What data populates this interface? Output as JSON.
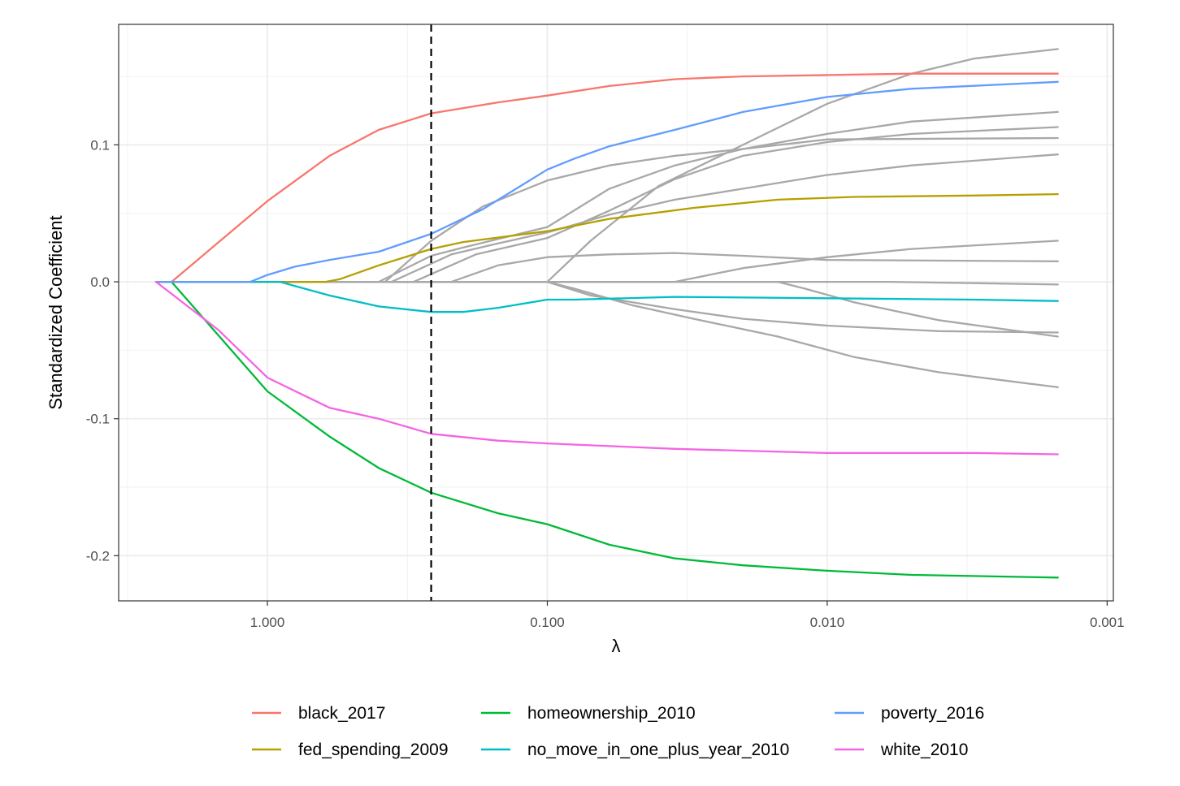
{
  "chart_data": {
    "type": "line",
    "title": "",
    "xlabel": "λ",
    "ylabel": "Standardized Coefficient",
    "x_scale": "log10-reversed",
    "xlim": [
      3.4,
      0.00095
    ],
    "ylim": [
      -0.233,
      0.188
    ],
    "x_ticks": [
      1,
      0.1,
      0.01,
      0.001
    ],
    "x_tick_labels": [
      "1.000",
      "0.100",
      "0.010",
      "0.001"
    ],
    "y_ticks": [
      -0.2,
      -0.1,
      0.0,
      0.1
    ],
    "y_tick_labels": [
      "-0.2",
      "-0.1",
      "0.0",
      "0.1"
    ],
    "grid": true,
    "legend_position": "bottom",
    "vline": {
      "x": 0.26,
      "style": "dashed",
      "color": "#000000"
    },
    "series": [
      {
        "name": "black_2017",
        "color": "#F8766D",
        "points": [
          [
            2.2,
            0
          ],
          [
            1.0,
            0.059
          ],
          [
            0.6,
            0.092
          ],
          [
            0.4,
            0.111
          ],
          [
            0.26,
            0.123
          ],
          [
            0.15,
            0.131
          ],
          [
            0.1,
            0.136
          ],
          [
            0.06,
            0.143
          ],
          [
            0.035,
            0.148
          ],
          [
            0.02,
            0.15
          ],
          [
            0.01,
            0.151
          ],
          [
            0.005,
            0.152
          ],
          [
            0.0015,
            0.152
          ]
        ]
      },
      {
        "name": "fed_spending_2009",
        "color": "#B79F00",
        "points": [
          [
            2.5,
            0
          ],
          [
            0.62,
            0
          ],
          [
            0.55,
            0.002
          ],
          [
            0.4,
            0.012
          ],
          [
            0.26,
            0.024
          ],
          [
            0.2,
            0.029
          ],
          [
            0.1,
            0.037
          ],
          [
            0.06,
            0.046
          ],
          [
            0.03,
            0.054
          ],
          [
            0.015,
            0.06
          ],
          [
            0.008,
            0.062
          ],
          [
            0.003,
            0.063
          ],
          [
            0.0015,
            0.064
          ]
        ]
      },
      {
        "name": "homeownership_2010",
        "color": "#00BA38",
        "points": [
          [
            2.2,
            0
          ],
          [
            1.0,
            -0.08
          ],
          [
            0.6,
            -0.113
          ],
          [
            0.4,
            -0.136
          ],
          [
            0.26,
            -0.154
          ],
          [
            0.15,
            -0.169
          ],
          [
            0.1,
            -0.177
          ],
          [
            0.06,
            -0.192
          ],
          [
            0.035,
            -0.202
          ],
          [
            0.02,
            -0.207
          ],
          [
            0.01,
            -0.211
          ],
          [
            0.005,
            -0.214
          ],
          [
            0.0015,
            -0.216
          ]
        ]
      },
      {
        "name": "no_move_in_one_plus_year_2010",
        "color": "#00BFC4",
        "points": [
          [
            2.5,
            0
          ],
          [
            0.9,
            0
          ],
          [
            0.8,
            -0.003
          ],
          [
            0.6,
            -0.01
          ],
          [
            0.4,
            -0.018
          ],
          [
            0.26,
            -0.022
          ],
          [
            0.2,
            -0.022
          ],
          [
            0.15,
            -0.019
          ],
          [
            0.1,
            -0.013
          ],
          [
            0.08,
            -0.013
          ],
          [
            0.035,
            -0.011
          ],
          [
            0.01,
            -0.012
          ],
          [
            0.003,
            -0.013
          ],
          [
            0.0015,
            -0.014
          ]
        ]
      },
      {
        "name": "poverty_2016",
        "color": "#619CFF",
        "points": [
          [
            2.5,
            0
          ],
          [
            1.15,
            0
          ],
          [
            1.0,
            0.005
          ],
          [
            0.8,
            0.011
          ],
          [
            0.6,
            0.016
          ],
          [
            0.4,
            0.022
          ],
          [
            0.26,
            0.035
          ],
          [
            0.17,
            0.053
          ],
          [
            0.1,
            0.082
          ],
          [
            0.08,
            0.09
          ],
          [
            0.06,
            0.099
          ],
          [
            0.035,
            0.111
          ],
          [
            0.02,
            0.124
          ],
          [
            0.01,
            0.135
          ],
          [
            0.005,
            0.141
          ],
          [
            0.0015,
            0.146
          ]
        ]
      },
      {
        "name": "white_2010",
        "color": "#F564E3",
        "points": [
          [
            2.5,
            0
          ],
          [
            1.5,
            -0.035
          ],
          [
            1.0,
            -0.07
          ],
          [
            0.6,
            -0.092
          ],
          [
            0.4,
            -0.1
          ],
          [
            0.26,
            -0.111
          ],
          [
            0.15,
            -0.116
          ],
          [
            0.1,
            -0.118
          ],
          [
            0.06,
            -0.12
          ],
          [
            0.035,
            -0.122
          ],
          [
            0.01,
            -0.125
          ],
          [
            0.003,
            -0.125
          ],
          [
            0.0015,
            -0.126
          ]
        ]
      },
      {
        "name": "",
        "color": "#A8A8A8",
        "points": [
          [
            2.5,
            0
          ],
          [
            0.4,
            0
          ],
          [
            0.26,
            0.019
          ],
          [
            0.2,
            0.025
          ],
          [
            0.1,
            0.04
          ],
          [
            0.06,
            0.068
          ],
          [
            0.035,
            0.085
          ],
          [
            0.02,
            0.097
          ],
          [
            0.01,
            0.108
          ],
          [
            0.005,
            0.117
          ],
          [
            0.0015,
            0.124
          ]
        ]
      },
      {
        "name": "",
        "color": "#A8A8A8",
        "points": [
          [
            2.5,
            0
          ],
          [
            0.38,
            0
          ],
          [
            0.26,
            0.03
          ],
          [
            0.17,
            0.055
          ],
          [
            0.1,
            0.074
          ],
          [
            0.06,
            0.085
          ],
          [
            0.035,
            0.092
          ],
          [
            0.02,
            0.097
          ],
          [
            0.01,
            0.104
          ],
          [
            0.0015,
            0.105
          ]
        ]
      },
      {
        "name": "",
        "color": "#A8A8A8",
        "points": [
          [
            2.5,
            0
          ],
          [
            0.36,
            0
          ],
          [
            0.22,
            0.02
          ],
          [
            0.15,
            0.028
          ],
          [
            0.1,
            0.036
          ],
          [
            0.06,
            0.049
          ],
          [
            0.035,
            0.06
          ],
          [
            0.02,
            0.068
          ],
          [
            0.01,
            0.078
          ],
          [
            0.005,
            0.085
          ],
          [
            0.0015,
            0.093
          ]
        ]
      },
      {
        "name": "",
        "color": "#A8A8A8",
        "points": [
          [
            2.5,
            0
          ],
          [
            0.3,
            0
          ],
          [
            0.18,
            0.02
          ],
          [
            0.1,
            0.032
          ],
          [
            0.06,
            0.052
          ],
          [
            0.035,
            0.075
          ],
          [
            0.02,
            0.092
          ],
          [
            0.01,
            0.102
          ],
          [
            0.005,
            0.108
          ],
          [
            0.0015,
            0.113
          ]
        ]
      },
      {
        "name": "",
        "color": "#A8A8A8",
        "points": [
          [
            2.5,
            0
          ],
          [
            0.22,
            0
          ],
          [
            0.15,
            0.012
          ],
          [
            0.1,
            0.018
          ],
          [
            0.06,
            0.02
          ],
          [
            0.035,
            0.021
          ],
          [
            0.02,
            0.019
          ],
          [
            0.01,
            0.016
          ],
          [
            0.0015,
            0.015
          ]
        ]
      },
      {
        "name": "",
        "color": "#A8A8A8",
        "points": [
          [
            2.5,
            0
          ],
          [
            0.1,
            0
          ],
          [
            0.07,
            0.03
          ],
          [
            0.04,
            0.07
          ],
          [
            0.02,
            0.1
          ],
          [
            0.01,
            0.13
          ],
          [
            0.005,
            0.152
          ],
          [
            0.003,
            0.163
          ],
          [
            0.0015,
            0.17
          ]
        ]
      },
      {
        "name": "",
        "color": "#A8A8A8",
        "points": [
          [
            2.5,
            0
          ],
          [
            0.035,
            0
          ],
          [
            0.02,
            0.01
          ],
          [
            0.01,
            0.018
          ],
          [
            0.005,
            0.024
          ],
          [
            0.0015,
            0.03
          ]
        ]
      },
      {
        "name": "",
        "color": "#A8A8A8",
        "points": [
          [
            2.5,
            0
          ],
          [
            0.1,
            0
          ],
          [
            0.08,
            -0.005
          ],
          [
            0.05,
            -0.017
          ],
          [
            0.03,
            -0.027
          ],
          [
            0.015,
            -0.04
          ],
          [
            0.008,
            -0.055
          ],
          [
            0.004,
            -0.066
          ],
          [
            0.0015,
            -0.077
          ]
        ]
      },
      {
        "name": "",
        "color": "#A8A8A8",
        "points": [
          [
            2.5,
            0
          ],
          [
            0.1,
            0
          ],
          [
            0.07,
            -0.01
          ],
          [
            0.035,
            -0.02
          ],
          [
            0.02,
            -0.027
          ],
          [
            0.01,
            -0.032
          ],
          [
            0.004,
            -0.036
          ],
          [
            0.0015,
            -0.037
          ]
        ]
      },
      {
        "name": "",
        "color": "#A8A8A8",
        "points": [
          [
            2.5,
            0
          ],
          [
            0.015,
            0
          ],
          [
            0.012,
            -0.005
          ],
          [
            0.008,
            -0.015
          ],
          [
            0.004,
            -0.028
          ],
          [
            0.0015,
            -0.04
          ]
        ]
      },
      {
        "name": "",
        "color": "#A8A8A8",
        "points": [
          [
            2.5,
            0
          ],
          [
            0.006,
            0
          ],
          [
            0.003,
            -0.001
          ],
          [
            0.0015,
            -0.002
          ]
        ]
      }
    ]
  }
}
